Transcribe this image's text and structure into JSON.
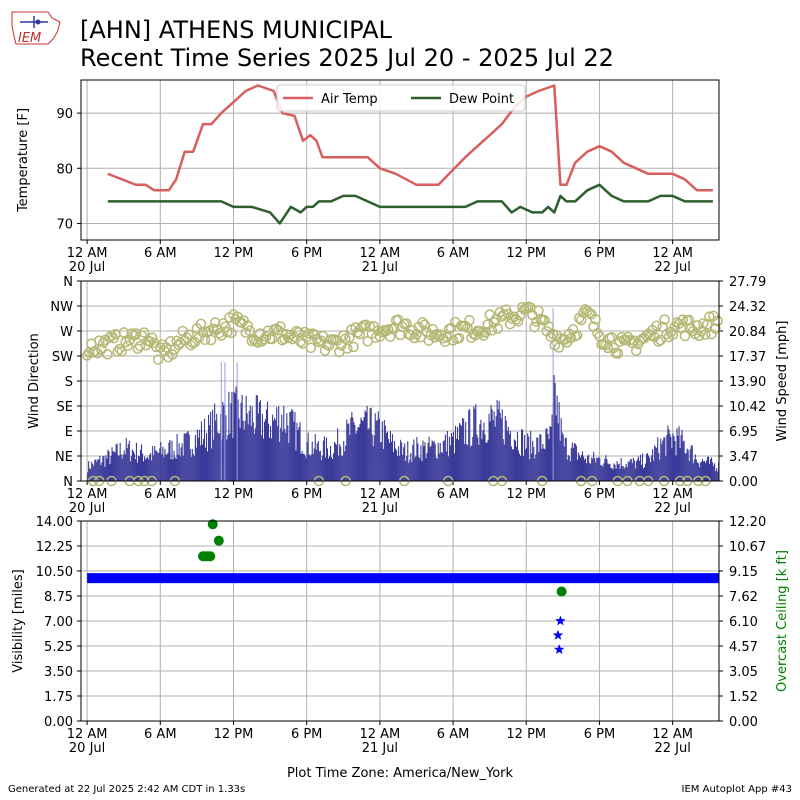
{
  "header": {
    "title_line1": "[AHN] ATHENS MUNICIPAL",
    "title_line2": "Recent Time Series 2025 Jul 20 - 2025 Jul 22",
    "logo_text": "IEM"
  },
  "footer": {
    "generated": "Generated at 22 Jul 2025 2:42 AM CDT in 1.33s",
    "app": "IEM Autoplot App #43"
  },
  "colors": {
    "air_temp": "#d95f5f",
    "dew_point": "#2e5e2e",
    "wind_dir": "#b5b874",
    "wind_speed": "#3a3a9a",
    "gust": "#9a9ae8",
    "visibility": "#0000ff",
    "ceiling": "#008000",
    "grid": "#b0b0b0"
  },
  "chart_data": [
    {
      "type": "line",
      "ylabel": "Temperature [F]",
      "ylim": [
        67,
        96
      ],
      "yticks": [
        70,
        80,
        90
      ],
      "xlim_hours": [
        -0.5,
        51.8
      ],
      "grid": true,
      "legend": {
        "placement": "top-center",
        "entries": [
          "Air Temp",
          "Dew Point"
        ]
      },
      "xtick_labels": [
        {
          "hour": 0,
          "label": "12 AM",
          "date": "20 Jul"
        },
        {
          "hour": 6,
          "label": "6 AM"
        },
        {
          "hour": 12,
          "label": "12 PM"
        },
        {
          "hour": 18,
          "label": "6 PM"
        },
        {
          "hour": 24,
          "label": "12 AM",
          "date": "21 Jul"
        },
        {
          "hour": 30,
          "label": "6 AM"
        },
        {
          "hour": 36,
          "label": "12 PM"
        },
        {
          "hour": 42,
          "label": "6 PM"
        },
        {
          "hour": 48,
          "label": "12 AM",
          "date": "22 Jul"
        }
      ],
      "series": [
        {
          "name": "Air Temp",
          "hours": [
            1.7,
            4.0,
            4.8,
            5.5,
            6.7,
            7.3,
            8.0,
            8.7,
            9.5,
            10.2,
            11.0,
            12.0,
            13.0,
            14.0,
            15.3,
            16.0,
            17.0,
            17.7,
            18.3,
            18.8,
            19.3,
            21.0,
            22.0,
            23.0,
            24.0,
            25.3,
            27.0,
            28.8,
            31.0,
            33.0,
            34.0,
            35.0,
            36.0,
            37.0,
            38.3,
            38.8,
            39.3,
            40.0,
            41.0,
            42.0,
            43.0,
            44.0,
            45.0,
            46.0,
            47.0,
            48.0,
            49.0,
            50.0,
            51.3
          ],
          "values": [
            79,
            77,
            77,
            76,
            76,
            78,
            83,
            83,
            88,
            88,
            90,
            92,
            94,
            95,
            94,
            90,
            89.5,
            85,
            86,
            85,
            82,
            82,
            82,
            82,
            80,
            79,
            77,
            77,
            82,
            86,
            88,
            91,
            93,
            94,
            95,
            77,
            77,
            81,
            83,
            84,
            83,
            81,
            80,
            79,
            79,
            79,
            78,
            76,
            76
          ]
        },
        {
          "name": "Dew Point",
          "hours": [
            1.7,
            3.0,
            5.0,
            7.0,
            9.0,
            11.0,
            12.0,
            13.5,
            15.0,
            15.8,
            16.7,
            17.5,
            18.0,
            18.5,
            19.0,
            20.0,
            21.0,
            22.0,
            23.0,
            24.0,
            25.0,
            27.0,
            29.0,
            31.0,
            32.0,
            34.0,
            34.8,
            35.5,
            36.5,
            37.3,
            37.8,
            38.3,
            38.8,
            39.3,
            40.0,
            41.0,
            42.0,
            43.0,
            44.0,
            45.0,
            46.0,
            47.0,
            48.0,
            49.0,
            50.0,
            51.3
          ],
          "values": [
            74,
            74,
            74,
            74,
            74,
            74,
            73,
            73,
            72,
            70,
            73,
            72,
            73,
            73,
            74,
            74,
            75,
            75,
            74,
            73,
            73,
            73,
            73,
            73,
            74,
            74,
            72,
            73,
            72,
            72,
            73,
            72,
            75,
            74,
            74,
            76,
            77,
            75,
            74,
            74,
            74,
            75,
            75,
            74,
            74,
            74
          ]
        }
      ]
    },
    {
      "type": "scatter",
      "ylabel": "Wind Direction",
      "ylabel_right": "Wind Speed [mph]",
      "ylim": [
        0,
        360
      ],
      "y_ticklabels": [
        "N",
        "NE",
        "E",
        "SE",
        "S",
        "SW",
        "W",
        "NW",
        "N"
      ],
      "ylim_right": [
        0,
        27.79
      ],
      "y_right_ticklabels": [
        "0.00",
        "3.47",
        "6.95",
        "10.42",
        "13.90",
        "17.37",
        "20.84",
        "24.32",
        "27.79"
      ],
      "xlim_hours": [
        -0.5,
        51.8
      ],
      "grid": true,
      "wind_direction_profile": {
        "hours": [
          0,
          3,
          5,
          6,
          8,
          10,
          12,
          14,
          16,
          18,
          20,
          22,
          24,
          26,
          28,
          30,
          32,
          34,
          36,
          37,
          38,
          39,
          40,
          41,
          42,
          44,
          46,
          48,
          50,
          51.8
        ],
        "degrees": [
          240,
          250,
          260,
          225,
          255,
          270,
          285,
          265,
          265,
          250,
          245,
          260,
          275,
          280,
          265,
          270,
          275,
          290,
          305,
          290,
          265,
          255,
          275,
          300,
          265,
          240,
          260,
          280,
          275,
          285
        ]
      },
      "calm_hours": [
        0.5,
        1.0,
        2.0,
        3.5,
        4.2,
        4.7,
        5.3,
        7.2,
        19.0,
        21.2,
        26.0,
        29.6,
        33.3,
        34.0,
        37.3,
        40.5,
        41.4,
        43.5,
        44.3,
        45.3,
        46.0,
        47.3,
        48.6,
        49.2,
        50.1,
        50.7
      ],
      "wind_speed_profile": {
        "hours": [
          0,
          2,
          3,
          5,
          6,
          8,
          10,
          11,
          12,
          13,
          15,
          16,
          17,
          18,
          19,
          20,
          21,
          22,
          23,
          24,
          25,
          26,
          27,
          28,
          29,
          30,
          31,
          32,
          33,
          34,
          35,
          36,
          37,
          38,
          38.3,
          39,
          40,
          41,
          42,
          43,
          44,
          45,
          46,
          47,
          48,
          49,
          50,
          51.8
        ],
        "mph": [
          2,
          3.5,
          4.5,
          3.5,
          4,
          5,
          7,
          9,
          9.5,
          9,
          8,
          9,
          7,
          5,
          4.5,
          4.5,
          6,
          7.5,
          7.5,
          7,
          5,
          4,
          4.5,
          4.5,
          5,
          5.5,
          7,
          8,
          8.5,
          8,
          6.5,
          5,
          5,
          6,
          12,
          5,
          4,
          3,
          3,
          2.5,
          2.5,
          2.5,
          3,
          5,
          6,
          5,
          3,
          2
        ]
      },
      "gust_marks": [
        {
          "hour": 11.0,
          "mph": 16.5
        },
        {
          "hour": 11.3,
          "mph": 16.5
        },
        {
          "hour": 12.3,
          "mph": 16.5
        },
        {
          "hour": 38.2,
          "mph": 24.0
        }
      ]
    },
    {
      "type": "scatter",
      "ylabel": "Visibility [miles]",
      "ylabel_right": "Overcast Ceiling [k ft]",
      "ylim": [
        0,
        14
      ],
      "y_ticklabels": [
        "0.00",
        "1.75",
        "3.50",
        "5.25",
        "7.00",
        "8.75",
        "10.50",
        "12.25",
        "14.00"
      ],
      "ylim_right": [
        0,
        12.2
      ],
      "y_right_ticklabels": [
        "0.00",
        "1.52",
        "3.05",
        "4.57",
        "6.10",
        "7.62",
        "9.15",
        "10.67",
        "12.20"
      ],
      "xlim_hours": [
        -0.5,
        51.8
      ],
      "grid": true,
      "visibility_band": {
        "hour_start": 0,
        "hour_end": 51.8,
        "miles": 10
      },
      "visibility_lows": [
        {
          "hour": 38.8,
          "miles": 7.0
        },
        {
          "hour": 38.6,
          "miles": 6.0
        },
        {
          "hour": 38.7,
          "miles": 5.0
        }
      ],
      "ceiling_points": [
        {
          "hour": 9.5,
          "kft": 10.05
        },
        {
          "hour": 9.7,
          "kft": 10.05
        },
        {
          "hour": 9.9,
          "kft": 10.05
        },
        {
          "hour": 10.1,
          "kft": 10.05
        },
        {
          "hour": 10.3,
          "kft": 12.0
        },
        {
          "hour": 10.8,
          "kft": 11.0
        },
        {
          "hour": 38.9,
          "kft": 7.9
        }
      ],
      "xlabel": "Plot Time Zone: America/New_York"
    }
  ]
}
